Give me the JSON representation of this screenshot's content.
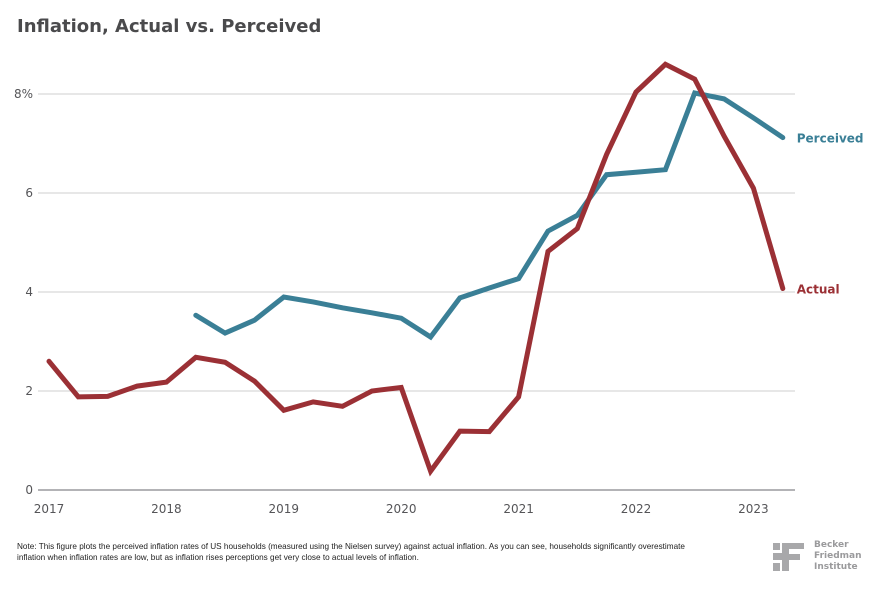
{
  "chart_data": {
    "type": "line",
    "title": "Inflation, Actual vs. Perceived",
    "xlabel": "",
    "ylabel": "",
    "xlim": [
      2017,
      2023.35
    ],
    "ylim": [
      0,
      8.9
    ],
    "grid": true,
    "x_ticks": [
      {
        "value": 2017,
        "label": "2017"
      },
      {
        "value": 2018,
        "label": "2018"
      },
      {
        "value": 2019,
        "label": "2019"
      },
      {
        "value": 2020,
        "label": "2020"
      },
      {
        "value": 2021,
        "label": "2021"
      },
      {
        "value": 2022,
        "label": "2022"
      },
      {
        "value": 2023,
        "label": "2023"
      }
    ],
    "y_ticks": [
      {
        "value": 0,
        "label": "0"
      },
      {
        "value": 2,
        "label": "2"
      },
      {
        "value": 4,
        "label": "4"
      },
      {
        "value": 6,
        "label": "6"
      },
      {
        "value": 8,
        "label": "8%"
      }
    ],
    "legend_placement": "right (inline at line ends)",
    "series": [
      {
        "name": "Perceived",
        "color": "#3a7f96",
        "x": [
          2018.25,
          2018.5,
          2018.75,
          2019.0,
          2019.25,
          2019.5,
          2019.75,
          2020.0,
          2020.25,
          2020.5,
          2020.75,
          2021.0,
          2021.25,
          2021.5,
          2021.75,
          2022.0,
          2022.25,
          2022.5,
          2022.75,
          2023.0,
          2023.25
        ],
        "values": [
          3.53,
          3.17,
          3.43,
          3.9,
          3.8,
          3.68,
          3.58,
          3.47,
          3.09,
          3.88,
          4.08,
          4.27,
          5.23,
          5.55,
          6.37,
          6.42,
          6.47,
          8.02,
          7.9,
          7.52,
          7.12
        ]
      },
      {
        "name": "Actual",
        "color": "#9b3035",
        "x": [
          2017.0,
          2017.25,
          2017.5,
          2017.75,
          2018.0,
          2018.25,
          2018.5,
          2018.75,
          2019.0,
          2019.25,
          2019.5,
          2019.75,
          2020.0,
          2020.25,
          2020.5,
          2020.75,
          2021.0,
          2021.25,
          2021.5,
          2021.75,
          2022.0,
          2022.25,
          2022.5,
          2022.75,
          2023.0,
          2023.25
        ],
        "values": [
          2.6,
          1.88,
          1.89,
          2.1,
          2.18,
          2.68,
          2.58,
          2.2,
          1.61,
          1.78,
          1.69,
          2.0,
          2.07,
          0.38,
          1.19,
          1.18,
          1.88,
          4.82,
          5.28,
          6.78,
          8.04,
          8.6,
          8.3,
          7.15,
          6.1,
          4.07
        ]
      }
    ]
  },
  "colors": {
    "grid": "#cfcfcf",
    "axis": "#9a9a9e",
    "tick_text": "#555558",
    "title": "#4a4a4c"
  },
  "note": "Note: This figure plots the perceived inflation rates of US households (measured using the Nielsen survey) against actual inflation. As you can see, households significantly overestimate inflation when inflation rates are low, but as inflation rises perceptions get very close to actual levels of inflation.",
  "logo": {
    "mark": "BF",
    "line1": "Becker",
    "line2": "Friedman",
    "line3": "Institute"
  }
}
